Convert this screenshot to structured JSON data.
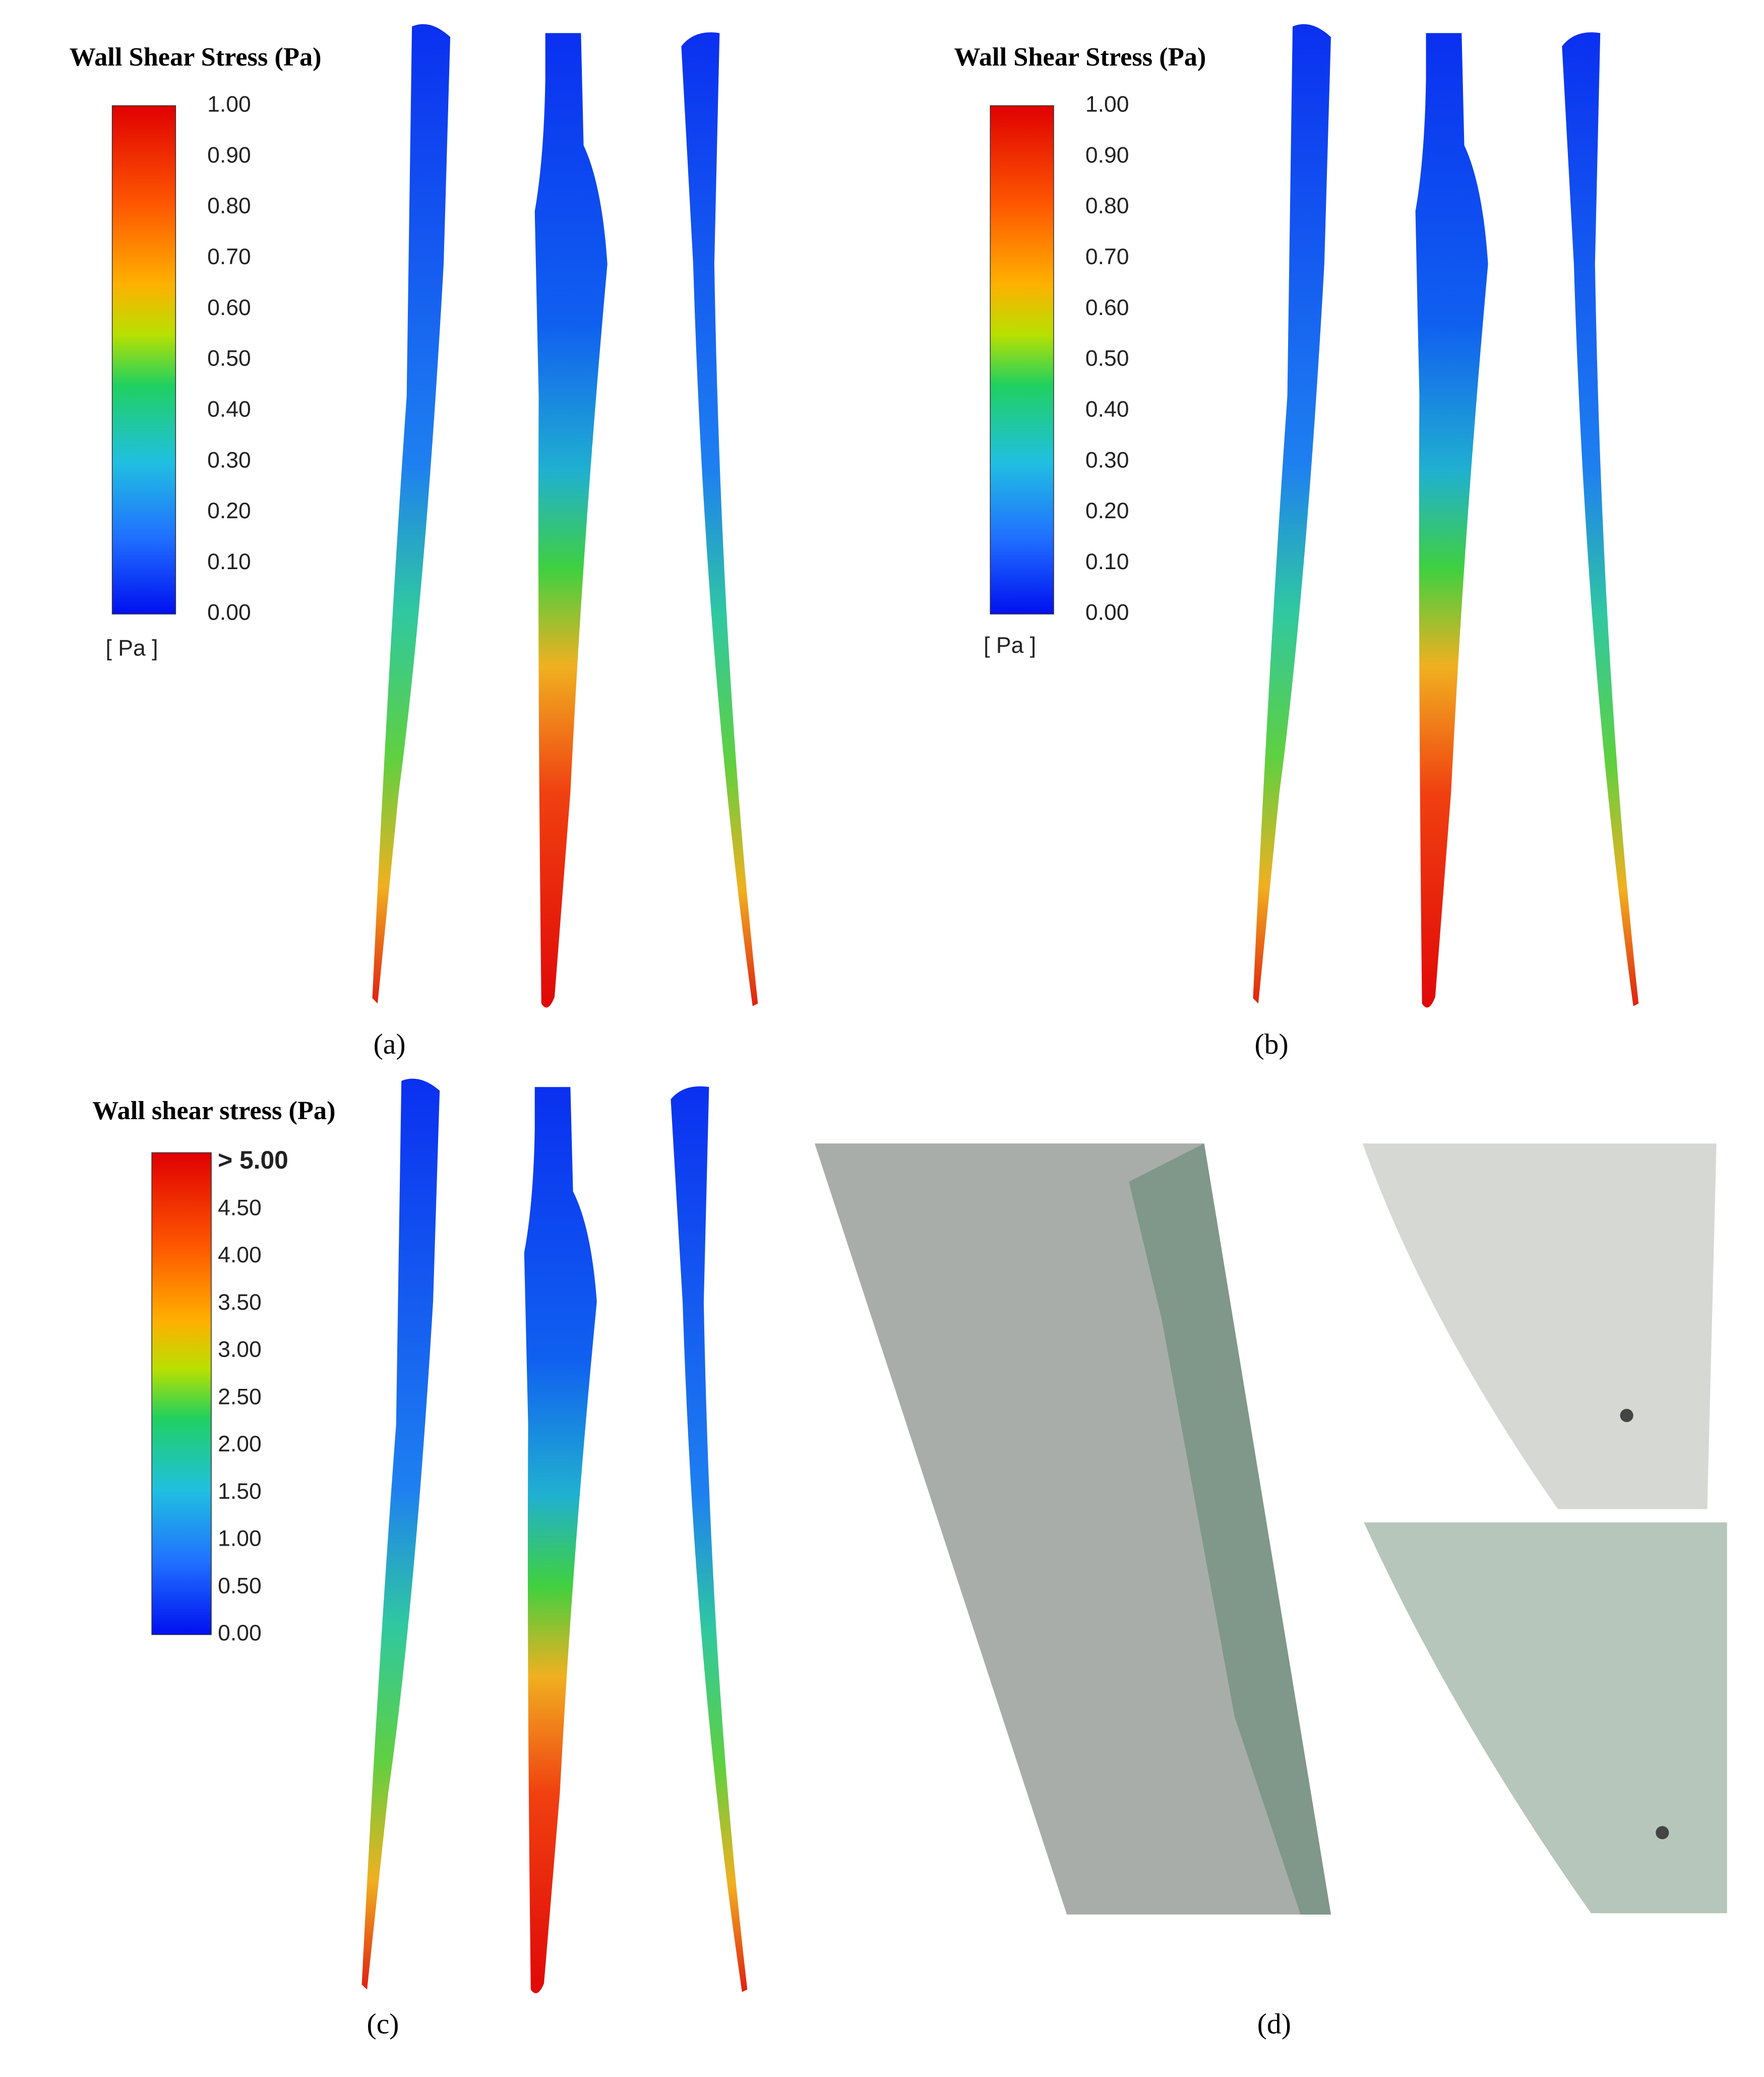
{
  "panels": [
    {
      "legend_title": "Wall Shear Stress (Pa)",
      "ticks": [
        "1.00",
        "0.90",
        "0.80",
        "0.70",
        "0.60",
        "0.50",
        "0.40",
        "0.30",
        "0.20",
        "0.10",
        "0.00"
      ],
      "unit": "[ Pa ]",
      "caption": "(a)"
    },
    {
      "legend_title": "Wall Shear Stress (Pa)",
      "ticks": [
        "1.00",
        "0.90",
        "0.80",
        "0.70",
        "0.60",
        "0.50",
        "0.40",
        "0.30",
        "0.20",
        "0.10",
        "0.00"
      ],
      "unit": "[ Pa ]",
      "caption": "(b)"
    },
    {
      "legend_title": "Wall shear stress (Pa)",
      "ticks": [
        "> 5.00",
        "4.50",
        "4.00",
        "3.50",
        "3.00",
        "2.50",
        "2.00",
        "1.50",
        "1.00",
        "0.50",
        "0.00"
      ],
      "caption": "(c)"
    },
    {
      "caption": "(d)"
    }
  ]
}
